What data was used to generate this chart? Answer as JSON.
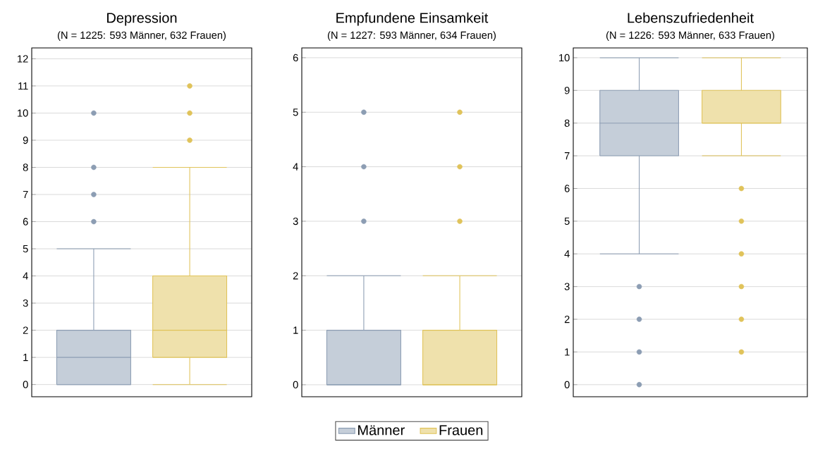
{
  "chart_data": [
    {
      "type": "box",
      "title": "Depression",
      "subtitle": "(N = 1225: 593 Männer, 632 Frauen)",
      "categories": [
        null
      ],
      "ylim": [
        -0.45,
        12.4
      ],
      "yticks": [
        0,
        1,
        2,
        3,
        4,
        5,
        6,
        7,
        8,
        9,
        10,
        11,
        12
      ],
      "grid": "y",
      "tick_labels": "y",
      "marker": "circle",
      "series": [
        {
          "color": "#8c9db3",
          "boxes": [
            {
              "low": 0,
              "q1": 0,
              "median": 1,
              "q3": 2,
              "high": 5,
              "outliers": [
                6,
                7,
                8,
                10
              ]
            }
          ]
        },
        {
          "color": "#e0c35a",
          "boxes": [
            {
              "low": 0,
              "q1": 1,
              "median": 2,
              "q3": 4,
              "high": 8,
              "outliers": [
                9,
                10,
                11
              ]
            }
          ]
        }
      ]
    },
    {
      "type": "box",
      "title": "Empfundene Einsamkeit",
      "subtitle": "(N = 1227: 593 Männer, 634 Frauen)",
      "categories": [
        null
      ],
      "ylim": [
        -0.22,
        6.18
      ],
      "yticks": [
        0,
        1,
        2,
        3,
        4,
        5,
        6
      ],
      "grid": "y",
      "tick_labels": "y",
      "marker": "circle",
      "legend": "bottom",
      "series": [
        {
          "name": "Männer",
          "color": "#8c9db3",
          "boxes": [
            {
              "low": 0,
              "q1": 0,
              "median": 0,
              "q3": 1,
              "high": 2,
              "outliers": [
                3,
                4,
                5
              ]
            }
          ]
        },
        {
          "name": "Frauen",
          "color": "#e0c35a",
          "boxes": [
            {
              "low": 0,
              "q1": 0,
              "median": 0,
              "q3": 1,
              "high": 2,
              "outliers": [
                3,
                4,
                5
              ]
            }
          ]
        }
      ]
    },
    {
      "type": "box",
      "title": "Lebenszufriedenheit",
      "subtitle": "(N = 1226: 593 Männer, 633 Frauen)",
      "categories": [
        null
      ],
      "ylim": [
        -0.37,
        10.3
      ],
      "yticks": [
        0,
        1,
        2,
        3,
        4,
        5,
        6,
        7,
        8,
        9,
        10
      ],
      "grid": "y",
      "tick_labels": "y",
      "marker": "circle",
      "series": [
        {
          "color": "#8c9db3",
          "boxes": [
            {
              "low": 4,
              "q1": 7,
              "median": 8,
              "q3": 9,
              "high": 10,
              "outliers": [
                0,
                1,
                2,
                3
              ]
            }
          ]
        },
        {
          "color": "#e0c35a",
          "boxes": [
            {
              "low": 7,
              "q1": 8,
              "median": 8,
              "q3": 9,
              "high": 10,
              "outliers": [
                1,
                2,
                3,
                4,
                5,
                6
              ]
            }
          ]
        }
      ]
    }
  ]
}
